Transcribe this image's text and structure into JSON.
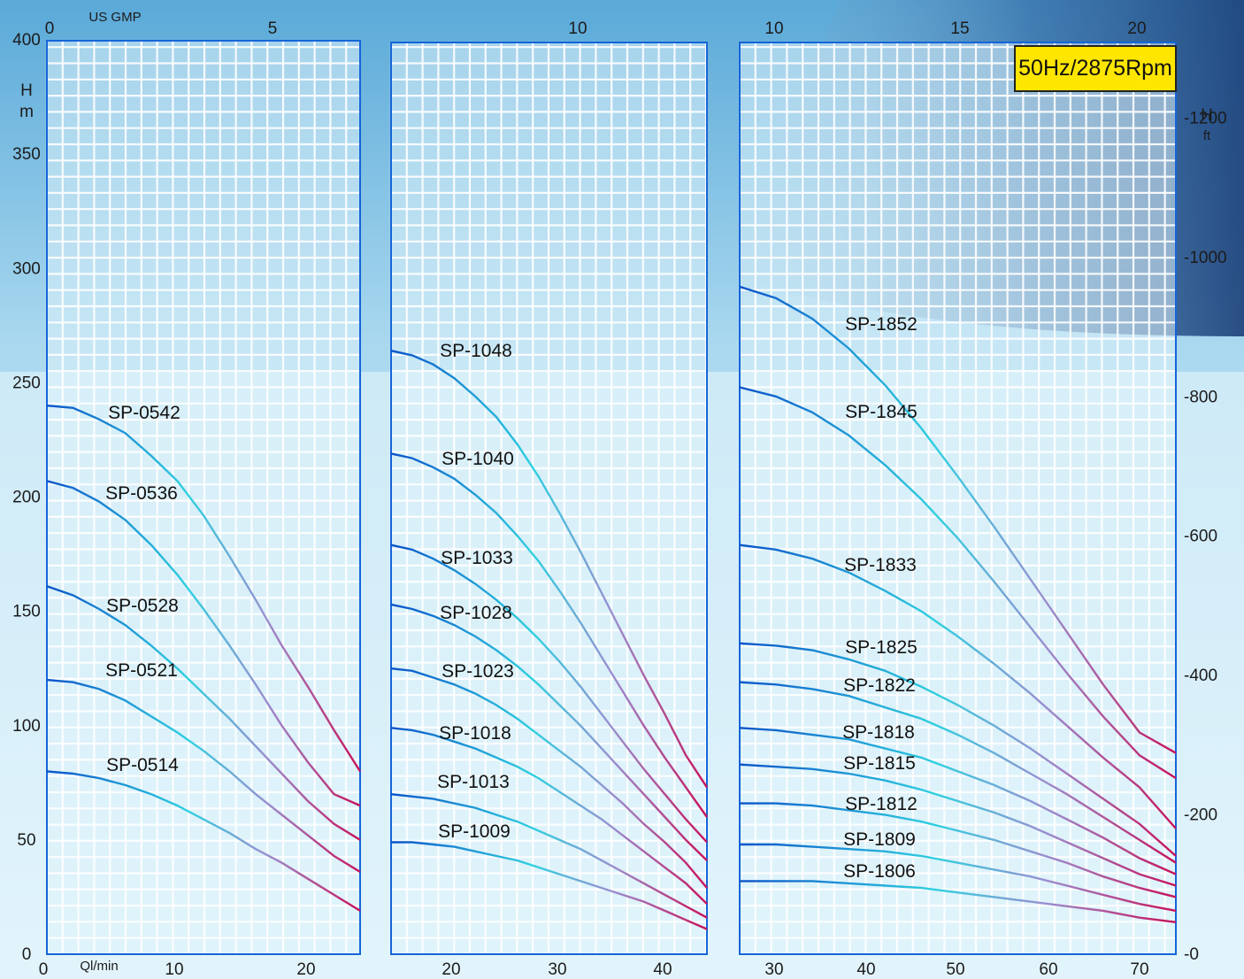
{
  "badge": "50Hz/2875Rpm",
  "colors": {
    "curve_start": "#0a53c9",
    "curve_mid": "#2fd0e0",
    "curve_end": "#c8105a",
    "frame": "#1565d8",
    "grid": "#ffffff"
  },
  "left_axis": {
    "unit_h": "H",
    "unit_m": "m",
    "ticks": [
      "0",
      "50",
      "100",
      "150",
      "200",
      "250",
      "300",
      "350",
      "400"
    ]
  },
  "right_axis": {
    "unit_h": "H",
    "unit_ft": "ft",
    "ticks": [
      "-0",
      "-200",
      "-400",
      "-600",
      "-800",
      "-1000",
      "-1200"
    ]
  },
  "chart_data": [
    {
      "type": "line",
      "top_axis": {
        "label": "US GMP",
        "ticks": [
          "0",
          "5"
        ]
      },
      "bottom_axis": {
        "label": "Ql/min",
        "ticks": [
          "0",
          "10",
          "20"
        ]
      },
      "xlim": [
        0,
        24
      ],
      "ylim": [
        0,
        400
      ],
      "series": [
        {
          "name": "SP-0542",
          "x": [
            0,
            2,
            4,
            6,
            8,
            10,
            12,
            14,
            16,
            18,
            20,
            22,
            24
          ],
          "y": [
            240,
            239,
            234,
            228,
            218,
            207,
            192,
            174,
            155,
            135,
            117,
            98,
            80
          ]
        },
        {
          "name": "SP-0536",
          "x": [
            0,
            2,
            4,
            6,
            8,
            10,
            12,
            14,
            16,
            18,
            20,
            22,
            24
          ],
          "y": [
            207,
            204,
            198,
            190,
            179,
            166,
            151,
            135,
            118,
            100,
            84,
            70,
            65
          ]
        },
        {
          "name": "SP-0528",
          "x": [
            0,
            2,
            4,
            6,
            8,
            10,
            12,
            14,
            16,
            18,
            20,
            22,
            24
          ],
          "y": [
            161,
            157,
            151,
            144,
            135,
            125,
            114,
            103,
            91,
            79,
            67,
            57,
            50
          ]
        },
        {
          "name": "SP-0521",
          "x": [
            0,
            2,
            4,
            6,
            8,
            10,
            12,
            14,
            16,
            18,
            20,
            22,
            24
          ],
          "y": [
            120,
            119,
            116,
            111,
            104,
            97,
            89,
            80,
            70,
            61,
            52,
            43,
            36
          ]
        },
        {
          "name": "SP-0514",
          "x": [
            0,
            2,
            4,
            6,
            8,
            10,
            12,
            14,
            16,
            18,
            20,
            22,
            24
          ],
          "y": [
            80,
            79,
            77,
            74,
            70,
            65,
            59,
            53,
            46,
            40,
            33,
            26,
            19
          ]
        }
      ],
      "labels": [
        "SP-0542",
        "SP-0536",
        "SP-0528",
        "SP-0521",
        "SP-0514"
      ]
    },
    {
      "type": "line",
      "top_axis": {
        "label": "",
        "ticks": [
          "10"
        ]
      },
      "bottom_axis": {
        "label": "",
        "ticks": [
          "20",
          "30",
          "40"
        ]
      },
      "xlim": [
        16,
        46
      ],
      "ylim": [
        0,
        400
      ],
      "series": [
        {
          "name": "SP-1048",
          "x": [
            16,
            18,
            20,
            22,
            24,
            26,
            28,
            30,
            32,
            34,
            36,
            38,
            40,
            42,
            44,
            46
          ],
          "y": [
            264,
            262,
            258,
            252,
            244,
            235,
            223,
            209,
            193,
            176,
            158,
            140,
            122,
            105,
            87,
            73
          ]
        },
        {
          "name": "SP-1040",
          "x": [
            16,
            18,
            20,
            22,
            24,
            26,
            28,
            30,
            32,
            34,
            36,
            38,
            40,
            42,
            44,
            46
          ],
          "y": [
            219,
            217,
            213,
            208,
            201,
            193,
            183,
            172,
            159,
            145,
            130,
            115,
            100,
            86,
            73,
            60
          ]
        },
        {
          "name": "SP-1033",
          "x": [
            16,
            18,
            20,
            22,
            24,
            26,
            28,
            30,
            32,
            34,
            36,
            38,
            40,
            42,
            44,
            46
          ],
          "y": [
            179,
            177,
            173,
            168,
            162,
            155,
            147,
            138,
            128,
            117,
            105,
            93,
            81,
            70,
            59,
            49
          ]
        },
        {
          "name": "SP-1028",
          "x": [
            16,
            18,
            20,
            22,
            24,
            26,
            28,
            30,
            32,
            34,
            36,
            38,
            40,
            42,
            44,
            46
          ],
          "y": [
            153,
            151,
            148,
            144,
            139,
            133,
            126,
            118,
            109,
            100,
            90,
            80,
            70,
            60,
            50,
            41
          ]
        },
        {
          "name": "SP-1023",
          "x": [
            16,
            18,
            20,
            22,
            24,
            26,
            28,
            30,
            32,
            34,
            36,
            38,
            40,
            42,
            44,
            46
          ],
          "y": [
            125,
            124,
            121,
            118,
            114,
            109,
            103,
            96,
            89,
            82,
            74,
            66,
            57,
            49,
            40,
            29
          ]
        },
        {
          "name": "SP-1018",
          "x": [
            16,
            18,
            20,
            22,
            24,
            26,
            28,
            30,
            32,
            34,
            36,
            38,
            40,
            42,
            44,
            46
          ],
          "y": [
            99,
            98,
            96,
            93,
            90,
            86,
            82,
            77,
            71,
            65,
            59,
            52,
            45,
            38,
            31,
            22
          ]
        },
        {
          "name": "SP-1013",
          "x": [
            16,
            18,
            20,
            22,
            24,
            26,
            28,
            30,
            32,
            34,
            36,
            38,
            40,
            42,
            44,
            46
          ],
          "y": [
            70,
            69,
            68,
            66,
            64,
            61,
            58,
            54,
            50,
            46,
            41,
            36,
            31,
            26,
            21,
            16
          ]
        },
        {
          "name": "SP-1009",
          "x": [
            16,
            18,
            20,
            22,
            24,
            26,
            28,
            30,
            32,
            34,
            36,
            38,
            40,
            42,
            44,
            46
          ],
          "y": [
            49,
            49,
            48,
            47,
            45,
            43,
            41,
            38,
            35,
            32,
            29,
            26,
            23,
            19,
            15,
            11
          ]
        }
      ],
      "labels": [
        "SP-1048",
        "SP-1040",
        "SP-1033",
        "SP-1028",
        "SP-1023",
        "SP-1018",
        "SP-1013",
        "SP-1009"
      ]
    },
    {
      "type": "line",
      "top_axis": {
        "label": "",
        "ticks": [
          "10",
          "15",
          "20"
        ]
      },
      "bottom_axis": {
        "label": "",
        "ticks": [
          "30",
          "40",
          "50",
          "60",
          "70"
        ]
      },
      "xlim": [
        26,
        74
      ],
      "ylim": [
        0,
        400
      ],
      "series": [
        {
          "name": "SP-1852",
          "x": [
            26,
            30,
            34,
            38,
            42,
            46,
            50,
            54,
            58,
            62,
            66,
            70,
            74
          ],
          "y": [
            292,
            287,
            278,
            265,
            249,
            230,
            209,
            187,
            164,
            141,
            118,
            97,
            88
          ]
        },
        {
          "name": "SP-1845",
          "x": [
            26,
            30,
            34,
            38,
            42,
            46,
            50,
            54,
            58,
            62,
            66,
            70,
            74
          ],
          "y": [
            248,
            244,
            237,
            227,
            214,
            199,
            182,
            163,
            143,
            123,
            104,
            87,
            77
          ]
        },
        {
          "name": "SP-1833",
          "x": [
            26,
            30,
            34,
            38,
            42,
            46,
            50,
            54,
            58,
            62,
            66,
            70,
            74
          ],
          "y": [
            179,
            177,
            173,
            167,
            159,
            150,
            139,
            127,
            114,
            100,
            86,
            73,
            55
          ]
        },
        {
          "name": "SP-1825",
          "x": [
            26,
            30,
            34,
            38,
            42,
            46,
            50,
            54,
            58,
            62,
            66,
            70,
            74
          ],
          "y": [
            136,
            135,
            133,
            129,
            124,
            117,
            109,
            100,
            90,
            79,
            68,
            57,
            43
          ]
        },
        {
          "name": "SP-1822",
          "x": [
            26,
            30,
            34,
            38,
            42,
            46,
            50,
            54,
            58,
            62,
            66,
            70,
            74
          ],
          "y": [
            119,
            118,
            116,
            113,
            108,
            103,
            96,
            88,
            79,
            70,
            60,
            50,
            40
          ]
        },
        {
          "name": "SP-1818",
          "x": [
            26,
            30,
            34,
            38,
            42,
            46,
            50,
            54,
            58,
            62,
            66,
            70,
            74
          ],
          "y": [
            99,
            98,
            96,
            94,
            90,
            86,
            80,
            74,
            67,
            59,
            51,
            42,
            35
          ]
        },
        {
          "name": "SP-1815",
          "x": [
            26,
            30,
            34,
            38,
            42,
            46,
            50,
            54,
            58,
            62,
            66,
            70,
            74
          ],
          "y": [
            83,
            82,
            81,
            79,
            76,
            72,
            67,
            62,
            56,
            49,
            42,
            35,
            30
          ]
        },
        {
          "name": "SP-1812",
          "x": [
            26,
            30,
            34,
            38,
            42,
            46,
            50,
            54,
            58,
            62,
            66,
            70,
            74
          ],
          "y": [
            66,
            66,
            65,
            63,
            61,
            58,
            54,
            50,
            45,
            40,
            34,
            29,
            25
          ]
        },
        {
          "name": "SP-1809",
          "x": [
            26,
            30,
            34,
            38,
            42,
            46,
            50,
            54,
            58,
            62,
            66,
            70,
            74
          ],
          "y": [
            48,
            48,
            47,
            46,
            45,
            43,
            40,
            37,
            34,
            30,
            26,
            22,
            19
          ]
        },
        {
          "name": "SP-1806",
          "x": [
            26,
            30,
            34,
            38,
            42,
            46,
            50,
            54,
            58,
            62,
            66,
            70,
            74
          ],
          "y": [
            32,
            32,
            32,
            31,
            30,
            29,
            27,
            25,
            23,
            21,
            19,
            16,
            14
          ]
        }
      ],
      "labels": [
        "SP-1852",
        "SP-1845",
        "SP-1833",
        "SP-1825",
        "SP-1822",
        "SP-1818",
        "SP-1815",
        "SP-1812",
        "SP-1809",
        "SP-1806"
      ]
    }
  ]
}
